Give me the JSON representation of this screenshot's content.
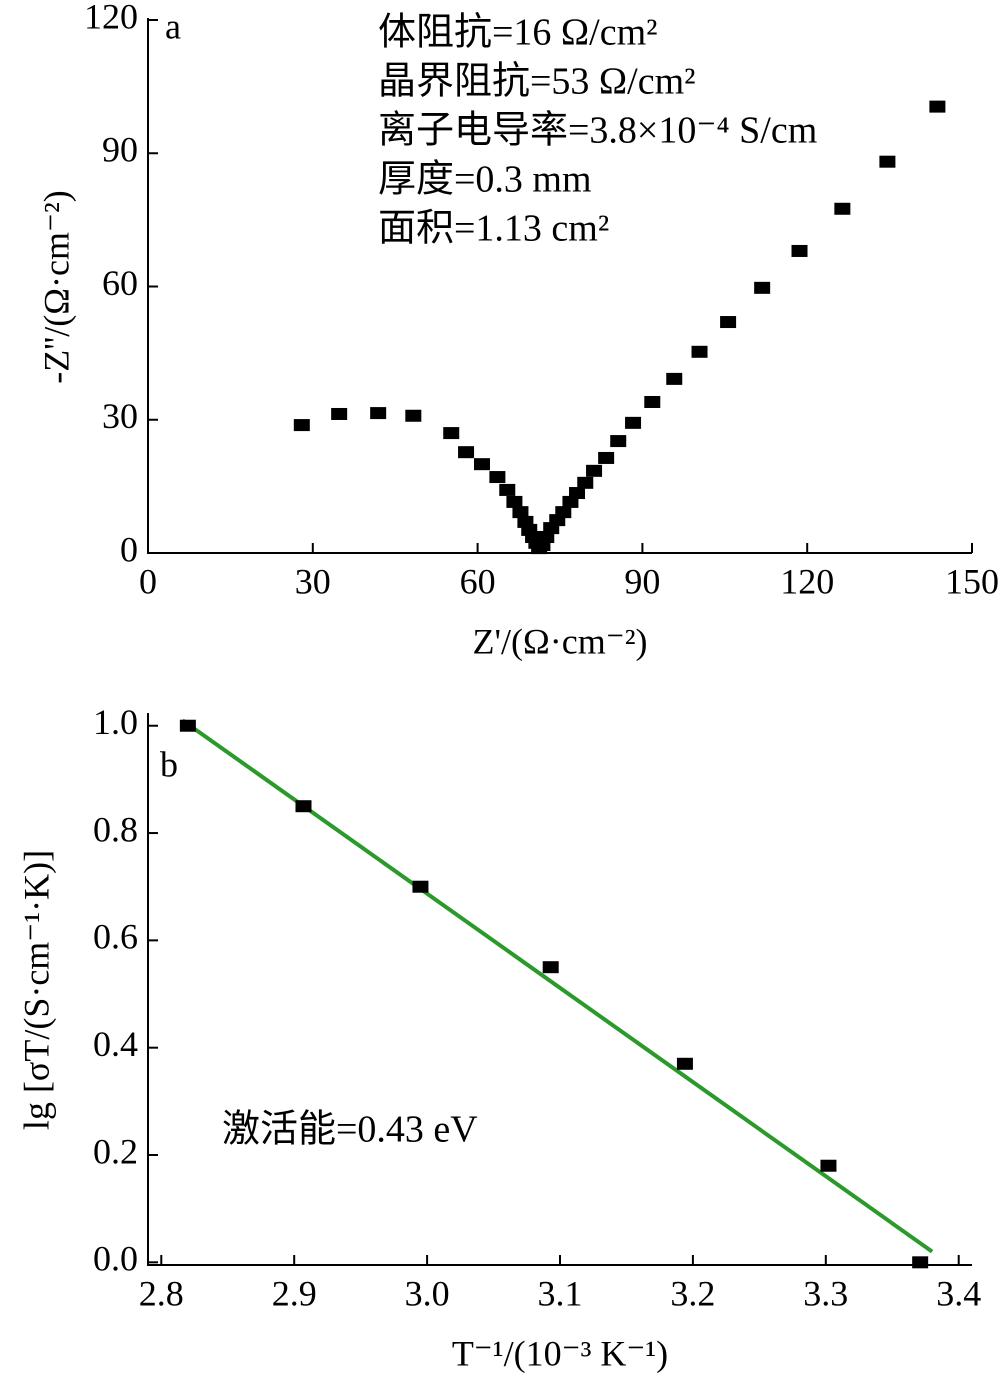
{
  "chart_data": [
    {
      "type": "scatter",
      "panel_label": "a",
      "xlabel": "Z'/(Ω·cm⁻²)",
      "ylabel": "-Z''/(Ω·cm⁻²)",
      "annotations": [
        "体阻抗=16 Ω/cm²",
        "晶界阻抗=53 Ω/cm²",
        "离子电导率=3.8×10⁻⁴ S/cm",
        "厚度=0.3 mm",
        "面积=1.13 cm²"
      ],
      "xlim": [
        0,
        150
      ],
      "ylim": [
        0,
        120
      ],
      "xticks": [
        0,
        30,
        60,
        90,
        120,
        150
      ],
      "yticks": [
        0,
        30,
        60,
        90,
        120
      ],
      "series": [
        {
          "color": "#000000",
          "x": [
            28.0,
            34.8,
            41.9,
            48.3,
            55.2,
            57.9,
            60.8,
            63.6,
            65.4,
            66.7,
            67.8,
            68.7,
            69.4,
            70.1,
            70.7,
            71.2,
            71.8,
            72.5,
            73.4,
            74.5,
            75.6,
            76.9,
            78.1,
            79.6,
            81.2,
            83.4,
            85.6,
            88.3,
            91.8,
            95.8,
            100.4,
            105.6,
            111.8,
            118.6,
            126.4,
            134.6,
            143.7
          ],
          "values": [
            28.8,
            31.3,
            31.5,
            30.9,
            27.0,
            22.7,
            20.0,
            17.1,
            14.2,
            11.5,
            9.2,
            7.0,
            5.2,
            3.6,
            2.3,
            1.1,
            1.8,
            3.6,
            5.6,
            7.4,
            9.2,
            11.5,
            13.5,
            15.8,
            18.5,
            21.4,
            25.2,
            29.3,
            34.0,
            39.2,
            45.3,
            52.0,
            59.7,
            68.0,
            77.5,
            88.1,
            100.5
          ]
        }
      ]
    },
    {
      "type": "scatter",
      "panel_label": "b",
      "xlabel": "T⁻¹/(10⁻³ K⁻¹)",
      "ylabel": "lg [σT/(S·cm⁻¹·K)]",
      "annotations": [
        "激活能=0.43 eV"
      ],
      "xlim": [
        2.79,
        3.41
      ],
      "ylim": [
        -0.005,
        1.02
      ],
      "xticks": [
        2.8,
        2.9,
        {
          "value": 3.0,
          "label": "3.0"
        },
        3.1,
        3.2,
        3.3,
        3.4
      ],
      "yticks": [
        {
          "value": 0,
          "label": "0.0"
        },
        0.2,
        0.4,
        0.6,
        0.8,
        {
          "value": 1,
          "label": "1.0"
        }
      ],
      "series": [
        {
          "color": "#000000",
          "x": [
            2.82,
            2.907,
            2.995,
            3.093,
            3.194,
            3.302,
            3.371
          ],
          "values": [
            1.0,
            0.85,
            0.7,
            0.55,
            0.37,
            0.18,
            0.0
          ]
        }
      ],
      "fit": {
        "color": "#2a9a2a",
        "x": [
          2.816,
          3.38
        ],
        "values": [
          1.01,
          0.02
        ]
      }
    }
  ]
}
